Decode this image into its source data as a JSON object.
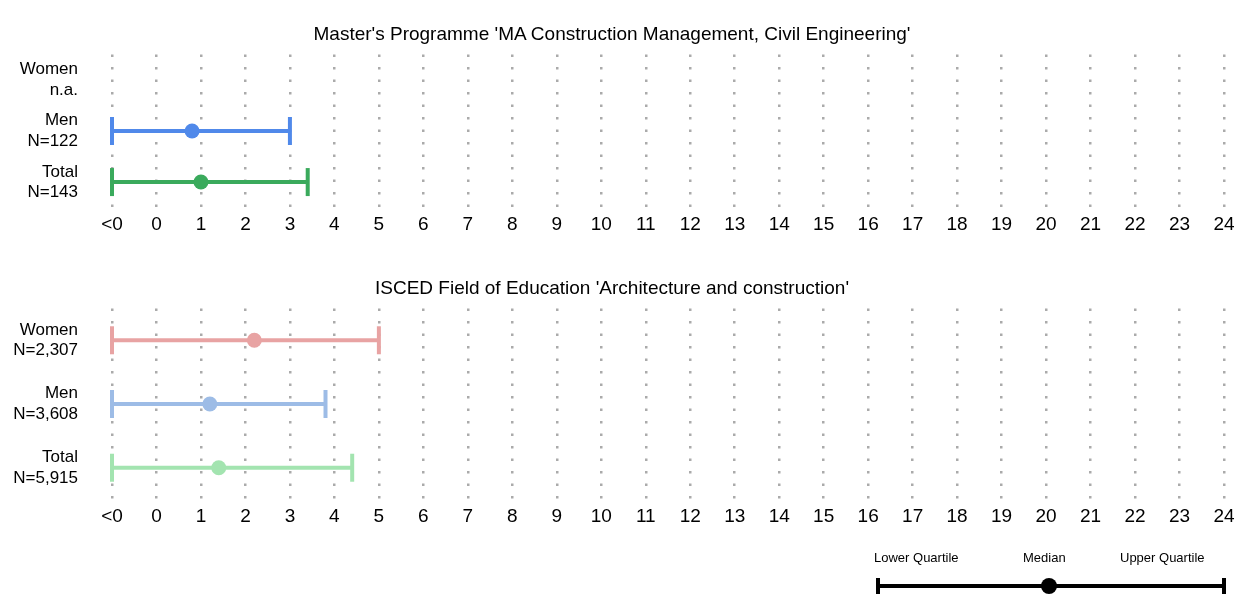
{
  "chart_data": [
    {
      "type": "box",
      "title": "Master's Programme 'MA Construction Management, Civil Engineering'",
      "orientation": "horizontal",
      "categories": [
        "Women\nn.a.",
        "Men\nN=122",
        "Total\nN=143"
      ],
      "colors": [
        null,
        "#5089ea",
        "#3aaa5c"
      ],
      "boxes": [
        null,
        {
          "low": -1,
          "q1": -1,
          "median": 0.8,
          "q3": 3.0,
          "high": 3.0
        },
        {
          "low": -1,
          "q1": -1,
          "median": 1.0,
          "q3": 3.4,
          "high": 3.4
        }
      ],
      "xlim": [
        -1,
        24
      ],
      "xticks": [
        {
          "value": -1,
          "label": "<0"
        },
        0,
        1,
        2,
        3,
        4,
        5,
        6,
        7,
        8,
        9,
        10,
        11,
        12,
        13,
        14,
        15,
        16,
        17,
        18,
        19,
        20,
        21,
        22,
        23,
        24
      ],
      "grid": "x"
    },
    {
      "type": "box",
      "title": "ISCED Field of Education 'Architecture and construction'",
      "orientation": "horizontal",
      "categories": [
        "Women\nN=2,307",
        "Men\nN=3,608",
        "Total\nN=5,915"
      ],
      "colors": [
        "#e8a3a3",
        "#9dbce6",
        "#a3e4b0"
      ],
      "boxes": [
        {
          "low": -1,
          "q1": -1,
          "median": 2.2,
          "q3": 5.0,
          "high": 5.0
        },
        {
          "low": -1,
          "q1": -1,
          "median": 1.2,
          "q3": 3.8,
          "high": 3.8
        },
        {
          "low": -1,
          "q1": -1,
          "median": 1.4,
          "q3": 4.4,
          "high": 4.4
        }
      ],
      "xlim": [
        -1,
        24
      ],
      "xticks": [
        {
          "value": -1,
          "label": "<0"
        },
        0,
        1,
        2,
        3,
        4,
        5,
        6,
        7,
        8,
        9,
        10,
        11,
        12,
        13,
        14,
        15,
        16,
        17,
        18,
        19,
        20,
        21,
        22,
        23,
        24
      ],
      "grid": "x",
      "annotations": [
        "Lower Quartile",
        "Median",
        "Upper Quartile"
      ]
    }
  ]
}
